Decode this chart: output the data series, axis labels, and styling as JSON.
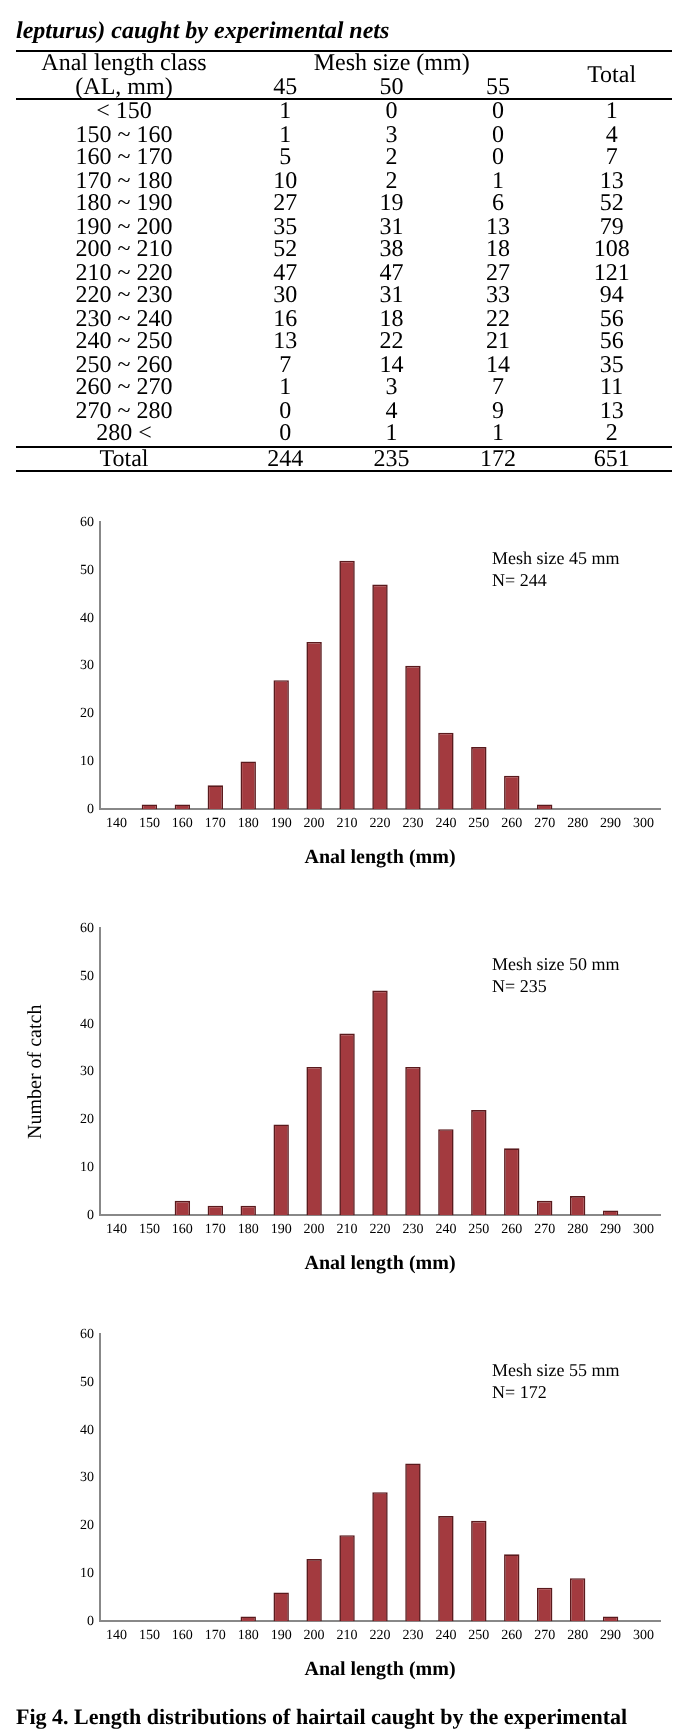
{
  "chart_data": [
    {
      "type": "other",
      "data_labels": true,
      "title": "lepturus) caught by experimental nets",
      "xlabel": "Anal length class (AL, mm)",
      "legend_title": "Mesh size (mm)",
      "categories": [
        "< 150",
        "150 ~ 160",
        "160 ~ 170",
        "170 ~ 180",
        "180 ~ 190",
        "190 ~ 200",
        "200 ~ 210",
        "210 ~ 220",
        "220 ~ 230",
        "230 ~ 240",
        "240 ~ 250",
        "250 ~ 260",
        "260 ~ 270",
        "270 ~ 280",
        "280 <",
        "Total"
      ],
      "series": [
        {
          "name": "45",
          "values": [
            1,
            1,
            5,
            10,
            27,
            35,
            52,
            47,
            30,
            16,
            13,
            7,
            1,
            0,
            0,
            244
          ]
        },
        {
          "name": "50",
          "values": [
            0,
            3,
            2,
            2,
            19,
            31,
            38,
            47,
            31,
            18,
            22,
            14,
            3,
            4,
            1,
            235
          ]
        },
        {
          "name": "55",
          "values": [
            0,
            0,
            0,
            1,
            6,
            13,
            18,
            27,
            33,
            22,
            21,
            14,
            7,
            9,
            1,
            172
          ]
        },
        {
          "name": "Total",
          "values": [
            1,
            4,
            7,
            13,
            52,
            79,
            108,
            121,
            94,
            56,
            56,
            35,
            11,
            13,
            2,
            651
          ]
        }
      ]
    },
    {
      "type": "bar",
      "categories": [
        "140",
        "150",
        "160",
        "170",
        "180",
        "190",
        "200",
        "210",
        "220",
        "230",
        "240",
        "250",
        "260",
        "270",
        "280",
        "290",
        "300"
      ],
      "values": [
        0,
        1,
        1,
        5,
        10,
        27,
        35,
        52,
        47,
        30,
        16,
        13,
        7,
        1,
        0,
        0,
        0
      ],
      "color": "#a33a3f",
      "ylim": [
        0,
        60
      ],
      "yticks": [
        0,
        10,
        20,
        30,
        40,
        50,
        60
      ],
      "grid": false,
      "xlabel": "Anal length (mm)",
      "annotations": [
        "Mesh size 45 mm",
        "N= 244"
      ]
    },
    {
      "type": "bar",
      "categories": [
        "140",
        "150",
        "160",
        "170",
        "180",
        "190",
        "200",
        "210",
        "220",
        "230",
        "240",
        "250",
        "260",
        "270",
        "280",
        "290",
        "300"
      ],
      "values": [
        0,
        0,
        3,
        2,
        2,
        19,
        31,
        38,
        47,
        31,
        18,
        22,
        14,
        3,
        4,
        1,
        0
      ],
      "color": "#a33a3f",
      "ylim": [
        0,
        60
      ],
      "yticks": [
        0,
        10,
        20,
        30,
        40,
        50,
        60
      ],
      "grid": false,
      "xlabel": "Anal length (mm)",
      "ylabel": "Number of catch",
      "annotations": [
        "Mesh size 50 mm",
        "N= 235"
      ]
    },
    {
      "type": "bar",
      "categories": [
        "140",
        "150",
        "160",
        "170",
        "180",
        "190",
        "200",
        "210",
        "220",
        "230",
        "240",
        "250",
        "260",
        "270",
        "280",
        "290",
        "300"
      ],
      "values": [
        0,
        0,
        0,
        0,
        1,
        6,
        13,
        18,
        27,
        33,
        22,
        21,
        14,
        7,
        9,
        1,
        0
      ],
      "color": "#a33a3f",
      "ylim": [
        0,
        60
      ],
      "yticks": [
        0,
        10,
        20,
        30,
        40,
        50,
        60
      ],
      "grid": false,
      "xlabel": "Anal length (mm)",
      "annotations": [
        "Mesh size 55 mm",
        "N= 172",
        "Fig 4. Length distributions of hairtail caught by the experimental"
      ]
    }
  ]
}
